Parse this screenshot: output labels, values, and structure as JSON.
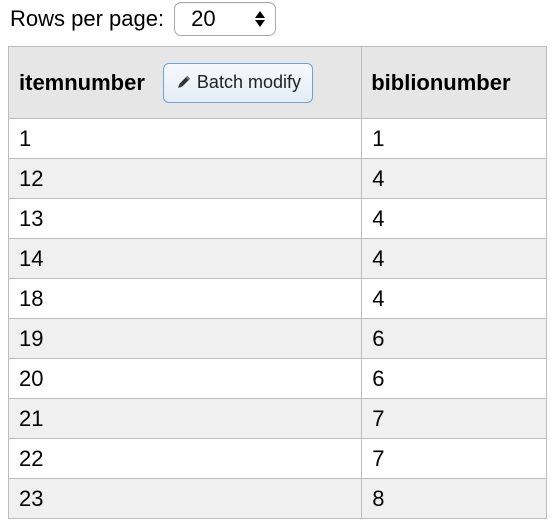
{
  "pagination": {
    "rows_label": "Rows per page:",
    "rows_value": "20"
  },
  "table": {
    "headers": [
      "itemnumber",
      "biblionumber"
    ],
    "batch_button_label": "Batch modify",
    "rows": [
      [
        "1",
        "1"
      ],
      [
        "12",
        "4"
      ],
      [
        "13",
        "4"
      ],
      [
        "14",
        "4"
      ],
      [
        "18",
        "4"
      ],
      [
        "19",
        "6"
      ],
      [
        "20",
        "6"
      ],
      [
        "21",
        "7"
      ],
      [
        "22",
        "7"
      ],
      [
        "23",
        "8"
      ]
    ]
  },
  "colors": {
    "header_bg": "#e6e6e6",
    "alt_row_bg": "#f0f0f0",
    "border": "#bcbcbc",
    "button_border": "#6fa0d6"
  },
  "icons": {
    "batch_button_icon": "pencil-icon",
    "select_icon": "up-down-arrows-icon"
  }
}
